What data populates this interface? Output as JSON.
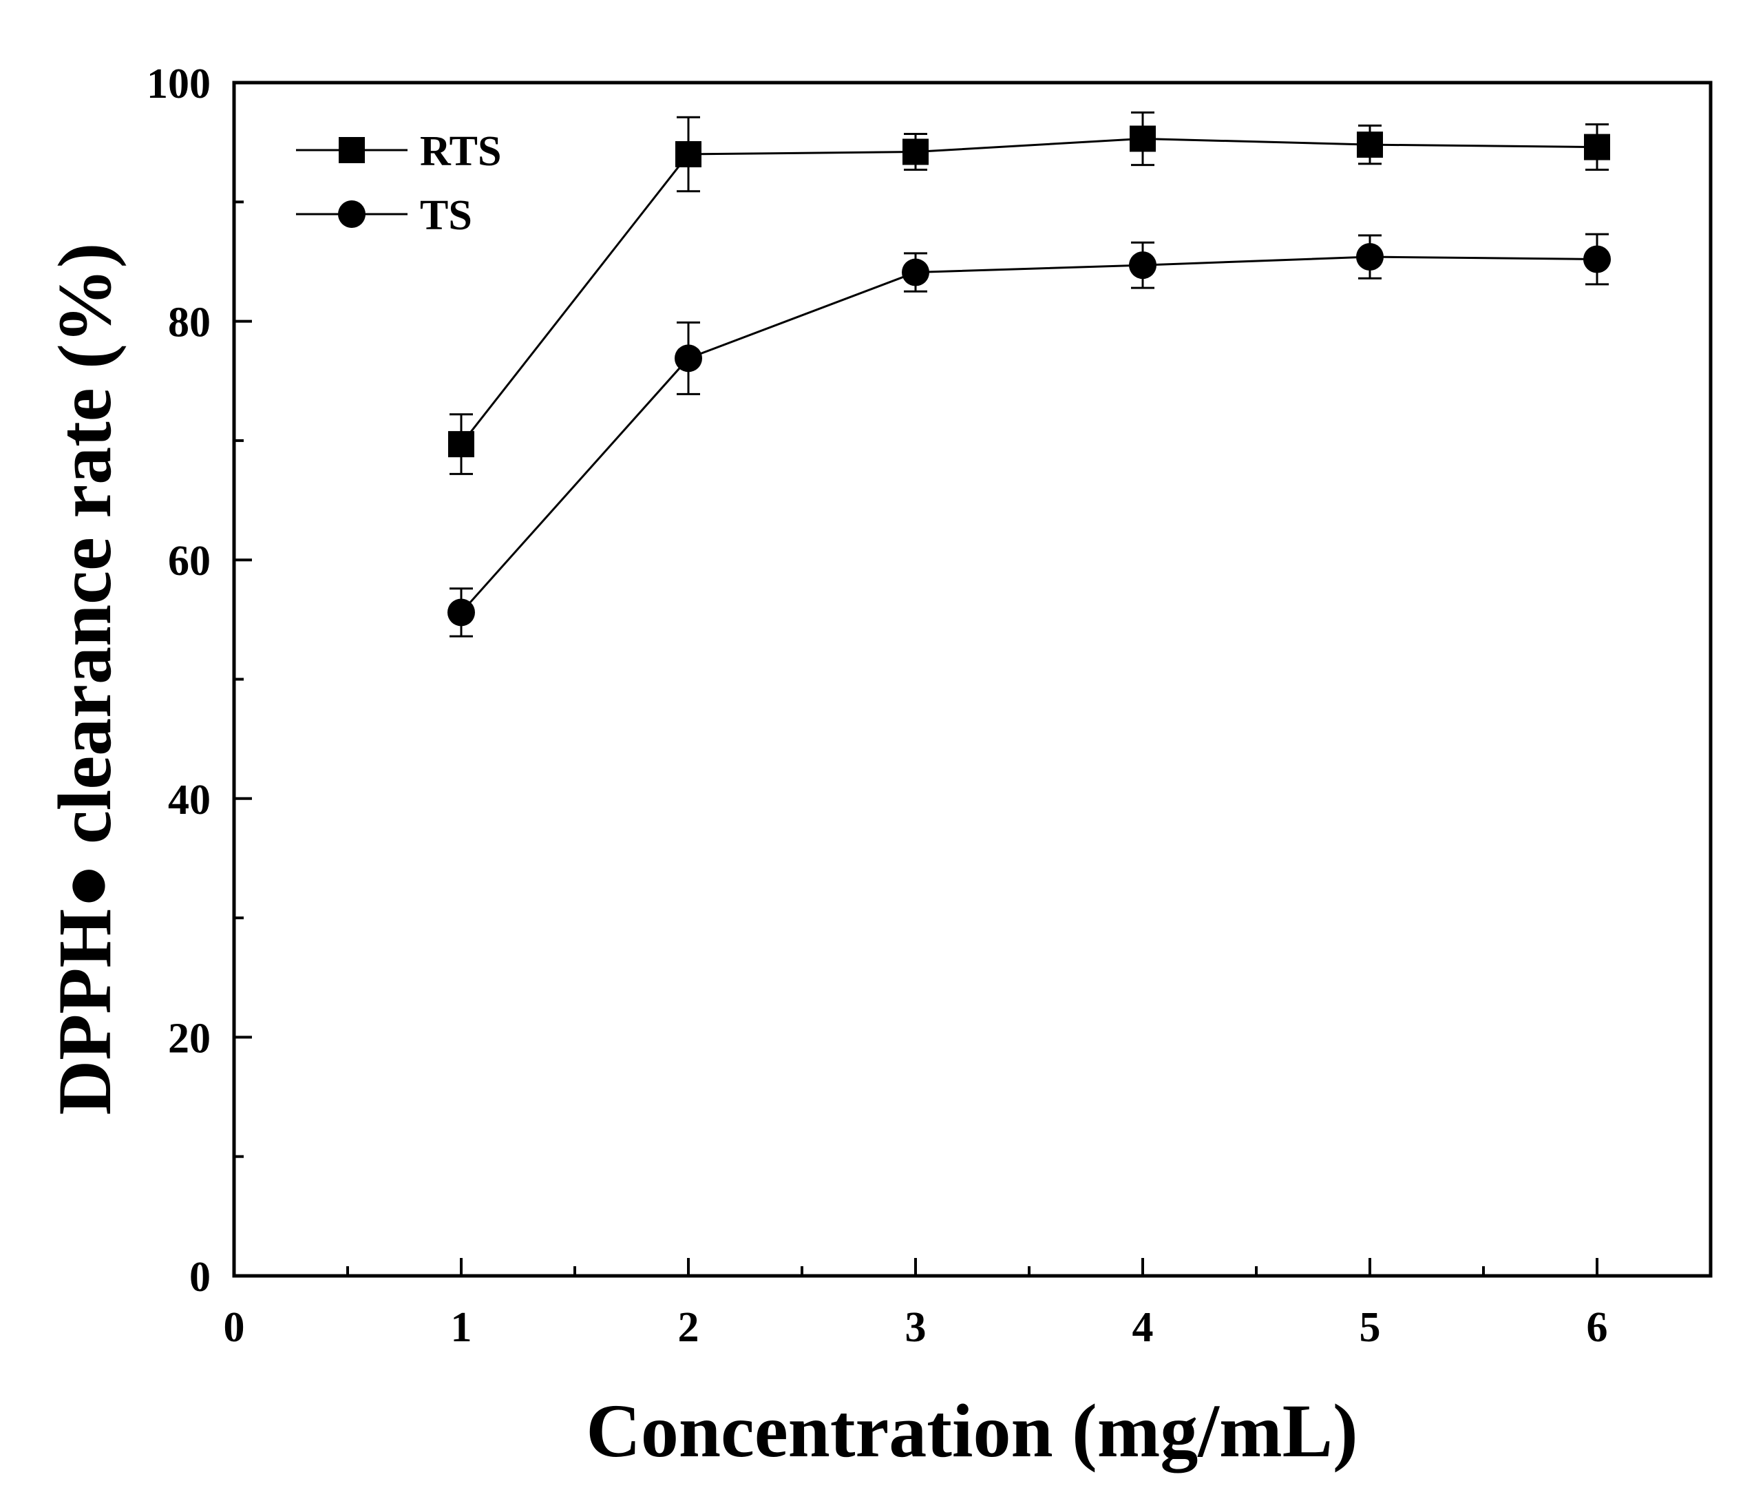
{
  "chart_data": {
    "type": "line",
    "title": "",
    "xlabel": "Concentration (mg/mL)",
    "ylabel": "DPPH● clearance rate (%)",
    "xlim": [
      0,
      6.5
    ],
    "ylim": [
      0,
      100
    ],
    "x_ticks": [
      0,
      1,
      2,
      3,
      4,
      5,
      6
    ],
    "x_minor_ticks": [
      0.5,
      1.5,
      2.5,
      3.5,
      4.5,
      5.5
    ],
    "x_tick_labels": [
      "0",
      "1",
      "2",
      "3",
      "4",
      "5",
      "6"
    ],
    "y_ticks": [
      0,
      20,
      40,
      60,
      80,
      100
    ],
    "y_minor_ticks": [
      10,
      30,
      50,
      70,
      90
    ],
    "y_tick_labels": [
      "0",
      "20",
      "40",
      "60",
      "80",
      "100"
    ],
    "grid": false,
    "legend_position": "top-left",
    "series": [
      {
        "name": "RTS",
        "marker": "square",
        "x": [
          1,
          2,
          3,
          4,
          5,
          6
        ],
        "values": [
          69.7,
          94.0,
          94.2,
          95.3,
          94.8,
          94.6
        ],
        "error": [
          2.5,
          3.1,
          1.5,
          2.2,
          1.6,
          1.9
        ]
      },
      {
        "name": "TS",
        "marker": "circle",
        "x": [
          1,
          2,
          3,
          4,
          5,
          6
        ],
        "values": [
          55.6,
          76.9,
          84.1,
          84.7,
          85.4,
          85.2
        ],
        "error": [
          2.0,
          3.0,
          1.6,
          1.9,
          1.8,
          2.1
        ]
      }
    ]
  }
}
